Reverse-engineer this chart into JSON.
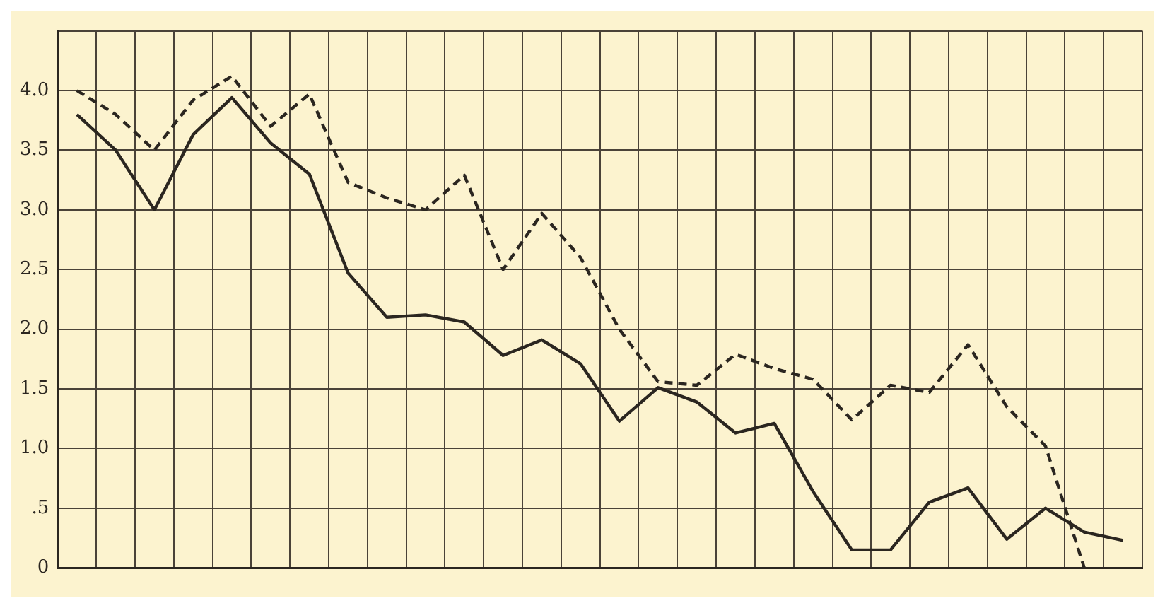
{
  "chart_data": {
    "type": "line",
    "categories": [
      null,
      null,
      null,
      null,
      null,
      null,
      null,
      null,
      null,
      null,
      null,
      null,
      null,
      null,
      null,
      null,
      null,
      null,
      null,
      null,
      null,
      null,
      null,
      null,
      null,
      null,
      null,
      null
    ],
    "series": [
      {
        "color": "#2b2620",
        "line_style": "solid",
        "values": [
          3.8,
          3.5,
          3.0,
          3.63,
          3.94,
          3.56,
          3.3,
          2.47,
          2.1,
          2.12,
          2.06,
          1.78,
          1.91,
          1.71,
          1.23,
          1.51,
          1.39,
          1.13,
          1.21,
          0.64,
          0.15,
          0.15,
          0.55,
          0.67,
          0.24,
          0.5,
          0.3,
          0.23
        ]
      },
      {
        "color": "#2b2620",
        "line_style": "dashed",
        "values": [
          4.0,
          3.8,
          3.5,
          3.92,
          4.12,
          3.7,
          3.97,
          3.23,
          3.1,
          3.0,
          3.29,
          2.5,
          2.97,
          2.6,
          2.0,
          1.56,
          1.53,
          1.79,
          1.67,
          1.58,
          1.24,
          1.53,
          1.47,
          1.87,
          1.35,
          1.02,
          0,
          null
        ]
      }
    ],
    "ylim": [
      0,
      4.5
    ],
    "yticks": [
      0,
      {
        "value": 0.5,
        "label": ".5"
      },
      {
        "value": 1,
        "label": "1.0"
      },
      {
        "value": 1.5,
        "label": "1.5"
      },
      {
        "value": 2,
        "label": "2.0"
      },
      {
        "value": 2.5,
        "label": "2.5"
      },
      {
        "value": 3,
        "label": "3.0"
      },
      {
        "value": 3.5,
        "label": "3.5"
      },
      {
        "value": 4,
        "label": "4.0"
      },
      {
        "value": 4.5,
        "label": null
      }
    ],
    "grid": true,
    "legend": false,
    "marker": "none"
  }
}
